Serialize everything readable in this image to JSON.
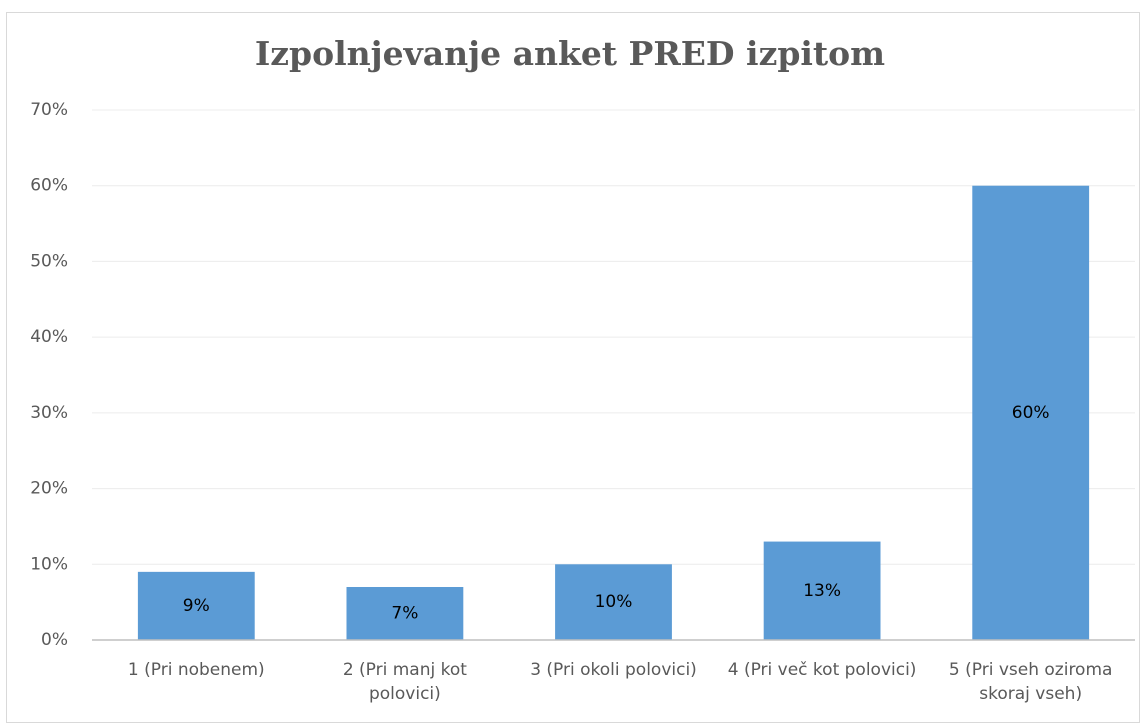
{
  "chart_data": {
    "type": "bar",
    "title": "Izpolnjevanje anket PRED izpitom",
    "categories": [
      "1 (Pri nobenem)",
      "2 (Pri manj kot polovici)",
      "3 (Pri okoli polovici)",
      "4 (Pri več kot polovici)",
      "5 (Pri vseh oziroma skoraj vseh)"
    ],
    "values": [
      9,
      7,
      10,
      13,
      60
    ],
    "value_labels": [
      "9%",
      "7%",
      "10%",
      "13%",
      "60%"
    ],
    "color": "#5b9bd5",
    "ylim": [
      0,
      70
    ],
    "yticks": [
      {
        "value": 0,
        "label": "0%"
      },
      {
        "value": 10,
        "label": "10%"
      },
      {
        "value": 20,
        "label": "20%"
      },
      {
        "value": 30,
        "label": "30%"
      },
      {
        "value": 40,
        "label": "40%"
      },
      {
        "value": 50,
        "label": "50%"
      },
      {
        "value": 60,
        "label": "60%"
      },
      {
        "value": 70,
        "label": "70%"
      }
    ],
    "grid": true
  }
}
